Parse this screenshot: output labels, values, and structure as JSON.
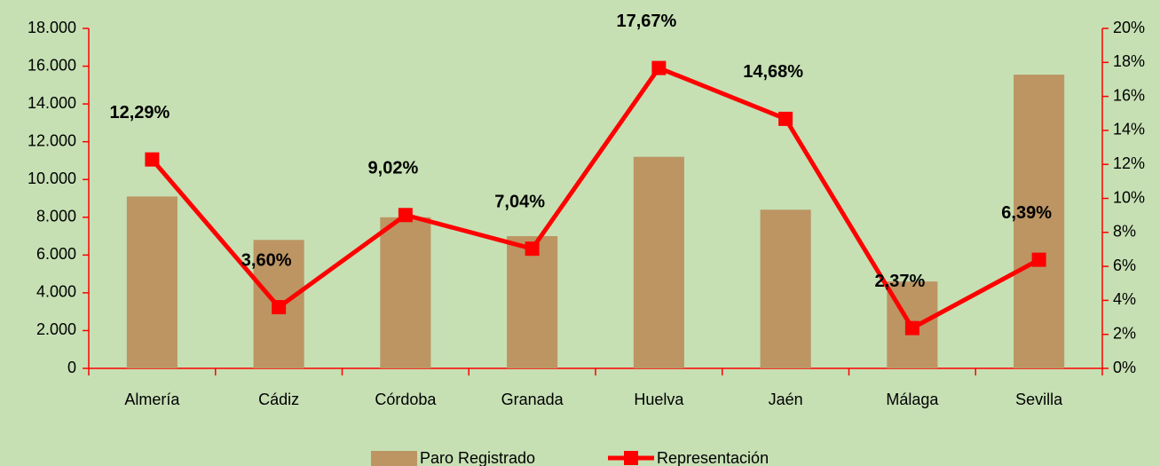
{
  "chart_data": {
    "type": "bar",
    "categories": [
      "Almería",
      "Cádiz",
      "Córdoba",
      "Granada",
      "Huelva",
      "Jaén",
      "Málaga",
      "Sevilla"
    ],
    "series": [
      {
        "name": "Paro Registrado",
        "type": "bar",
        "color": "#bc9563",
        "values": [
          9100,
          6800,
          8000,
          7000,
          11200,
          8400,
          4600,
          15550
        ]
      },
      {
        "name": "Representación",
        "type": "line",
        "axis": "y2",
        "color": "#ff0000",
        "values": [
          12.29,
          3.6,
          9.02,
          7.04,
          17.67,
          14.68,
          2.37,
          6.39
        ],
        "value_labels": [
          "12,29%",
          "3,60%",
          "9,02%",
          "7,04%",
          "17,67%",
          "14,68%",
          "2,37%",
          "6,39%"
        ]
      }
    ],
    "ylim": [
      0,
      18000
    ],
    "yticks": [
      0,
      {
        "value": 2000,
        "label": "2.000"
      },
      {
        "value": 4000,
        "label": "4.000"
      },
      {
        "value": 6000,
        "label": "6.000"
      },
      {
        "value": 8000,
        "label": "8.000"
      },
      {
        "value": 10000,
        "label": "10.000"
      },
      {
        "value": 12000,
        "label": "12.000"
      },
      {
        "value": 14000,
        "label": "14.000"
      },
      {
        "value": 16000,
        "label": "16.000"
      },
      {
        "value": 18000,
        "label": "18.000"
      }
    ],
    "y2lim": [
      0,
      20
    ],
    "y2ticks": [
      {
        "value": 0,
        "label": "0%"
      },
      {
        "value": 2,
        "label": "2%"
      },
      {
        "value": 4,
        "label": "4%"
      },
      {
        "value": 6,
        "label": "6%"
      },
      {
        "value": 8,
        "label": "8%"
      },
      {
        "value": 10,
        "label": "10%"
      },
      {
        "value": 12,
        "label": "12%"
      },
      {
        "value": 14,
        "label": "14%"
      },
      {
        "value": 16,
        "label": "16%"
      },
      {
        "value": 18,
        "label": "18%"
      },
      {
        "value": 20,
        "label": "20%"
      }
    ],
    "axis_color": "#ff0000",
    "legend": "bottom"
  }
}
